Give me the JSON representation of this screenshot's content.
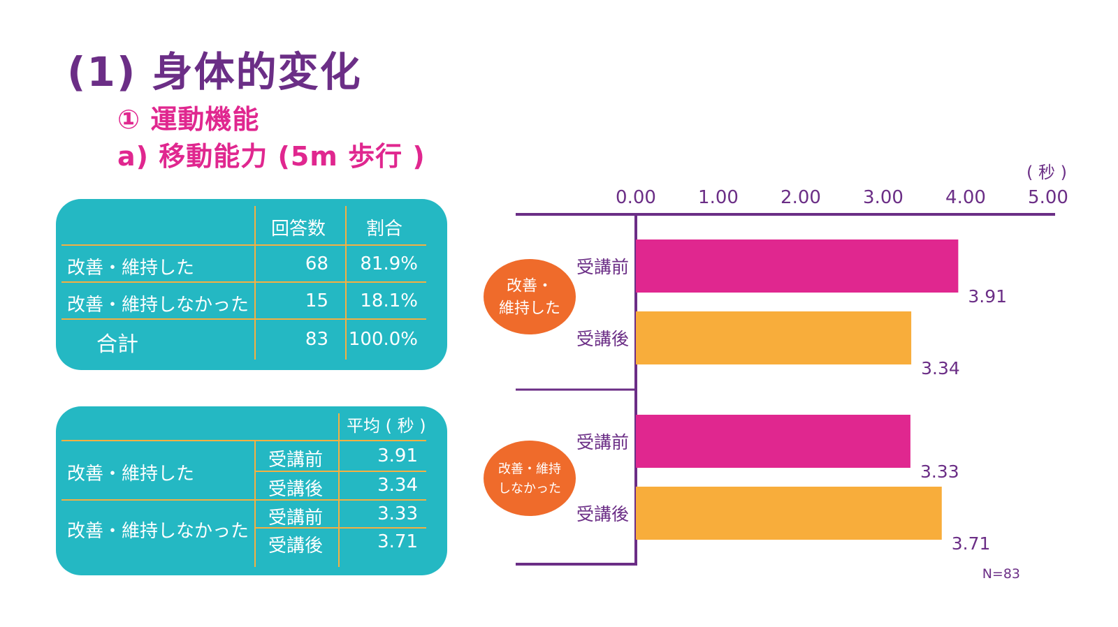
{
  "title": "(1) 身体的変化",
  "subtitle1": "① 運動機能",
  "subtitle2": "a) 移動能力 (5m 歩行 )",
  "table1": {
    "headers": [
      "回答数",
      "割合"
    ],
    "rows": [
      {
        "label": "改善・維持した",
        "count": "68",
        "ratio": "81.9%"
      },
      {
        "label": "改善・維持しなかった",
        "count": "15",
        "ratio": "18.1%"
      },
      {
        "label": "合計",
        "count": "83",
        "ratio": "100.0%"
      }
    ]
  },
  "table2": {
    "header": "平均 ( 秒 )",
    "groups": [
      {
        "label": "改善・維持した",
        "rows": [
          {
            "timing": "受講前",
            "value": "3.91"
          },
          {
            "timing": "受講後",
            "value": "3.34"
          }
        ]
      },
      {
        "label": "改善・維持しなかった",
        "rows": [
          {
            "timing": "受講前",
            "value": "3.33"
          },
          {
            "timing": "受講後",
            "value": "3.71"
          }
        ]
      }
    ]
  },
  "chart_data": {
    "type": "bar",
    "orientation": "horizontal",
    "unit_label": "( 秒 )",
    "xlim": [
      0,
      5
    ],
    "ticks": [
      "0.00",
      "1.00",
      "2.00",
      "3.00",
      "4.00",
      "5.00"
    ],
    "groups": [
      {
        "label": "改善・\n維持した",
        "bars": [
          {
            "category": "受講前",
            "value": 3.91,
            "label": "3.91"
          },
          {
            "category": "受講後",
            "value": 3.34,
            "label": "3.34"
          }
        ]
      },
      {
        "label": "改善・維持\nしなかった",
        "bars": [
          {
            "category": "受講前",
            "value": 3.33,
            "label": "3.33"
          },
          {
            "category": "受講後",
            "value": 3.71,
            "label": "3.71"
          }
        ]
      }
    ],
    "note": "N=83"
  },
  "colors": {
    "title": "#6b2e86",
    "subtitle": "#e0278f",
    "panel": "#24b8c3",
    "divider": "#f5b041",
    "before": "#e0278f",
    "after": "#f8ad3b",
    "group_badge": "#ef6b2b",
    "axis": "#6b2e86"
  }
}
